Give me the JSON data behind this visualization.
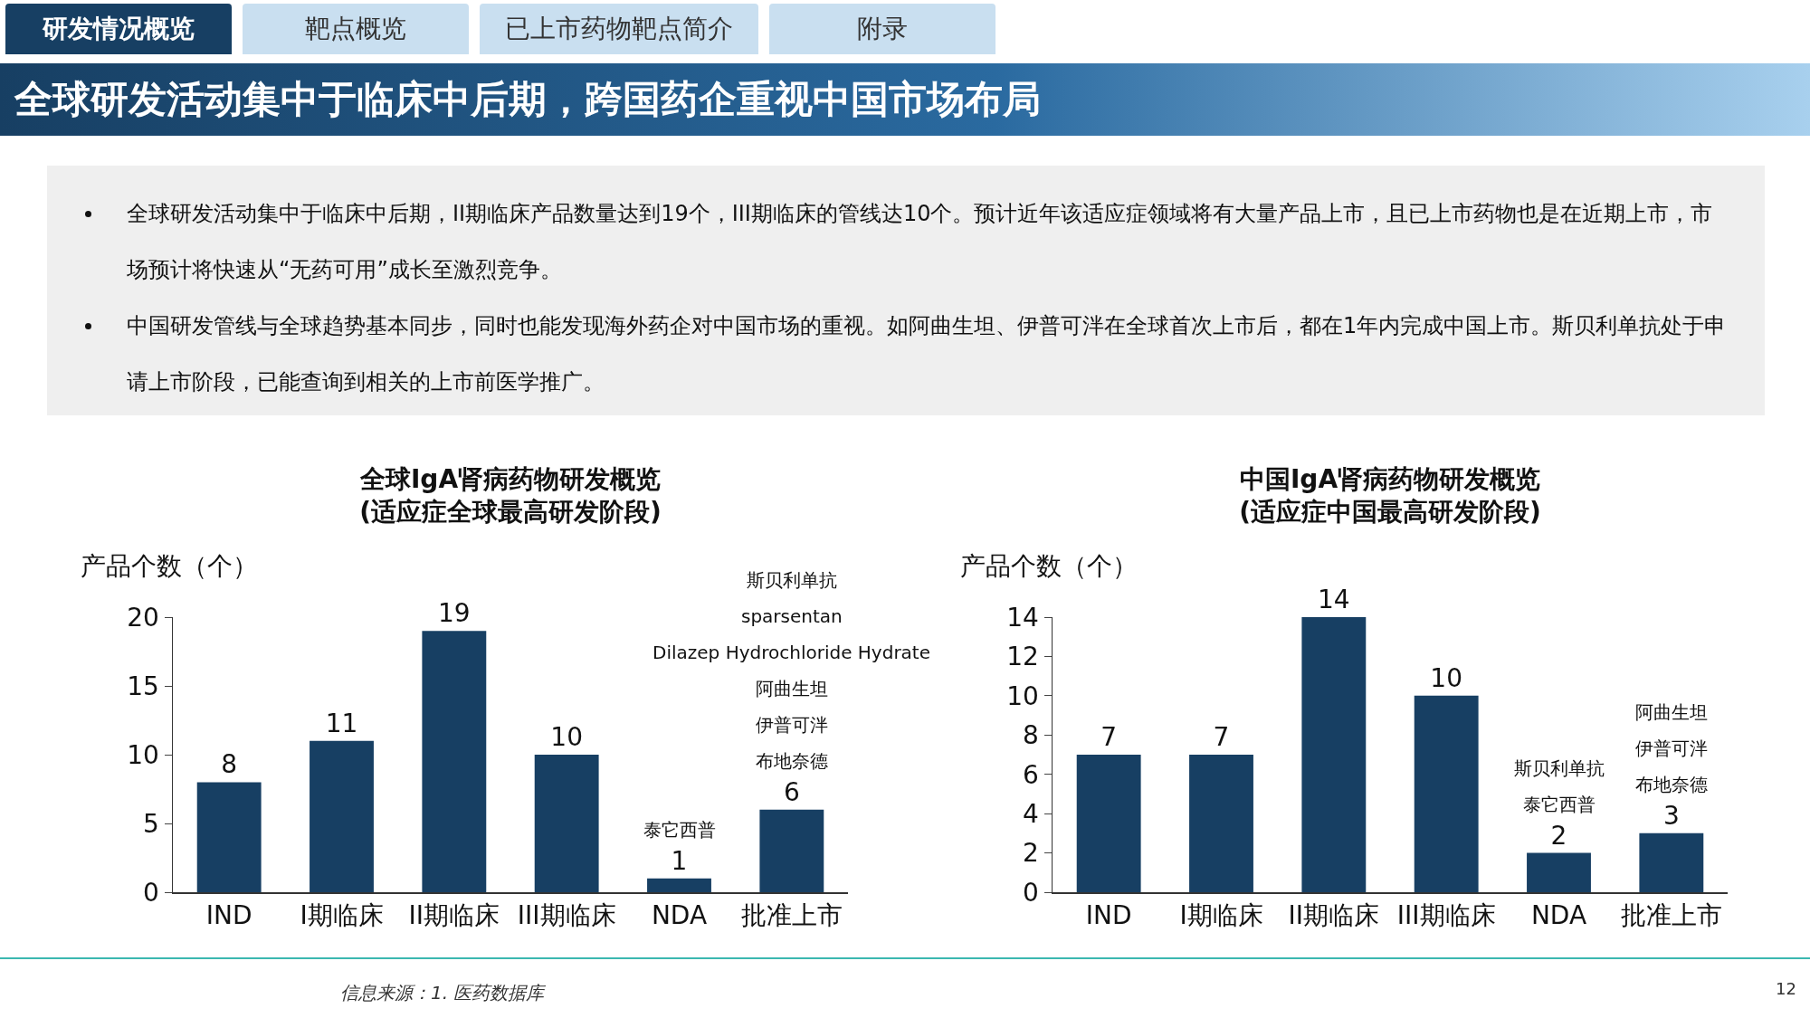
{
  "chart_data": [
    {
      "type": "other",
      "title": "全球研发活动集中于临床中后期，跨国药企重视中国市场布局",
      "annotations": [
        "研发情况概览",
        "靶点概览",
        "已上市药物靶点简介",
        "附录",
        "全球研发活动集中于临床中后期，II期临床产品数量达到19个，III期临床的管线达10个。预计近年该适应症领域将有大量产品上市，且已上市药物也是在近期上市，市场预计将快速从“无药可用”成长至激烈竞争。",
        "中国研发管线与全球趋势基本同步，同时也能发现海外药企对中国市场的重视。如阿曲生坦、伊普可泮在全球首次上市后，都在1年内完成中国上市。斯贝利单抗处于申请上市阶段，已能查询到相关的上市前医学推广。",
        "信息来源：1. 医药数据库",
        "12"
      ]
    },
    {
      "type": "bar",
      "title": "全球IgA肾病药物研发概览\n(适应症全球最高研发阶段)",
      "ylabel": "产品个数（个）",
      "categories": [
        "IND",
        "I期临床",
        "II期临床",
        "III期临床",
        "NDA",
        "批准上市"
      ],
      "values": [
        8,
        11,
        19,
        10,
        1,
        6
      ],
      "color": "#173f63",
      "ylim": [
        0,
        20
      ],
      "yticks": [
        0,
        5,
        10,
        15,
        20
      ],
      "grid": false,
      "legend": false,
      "data_labels": true,
      "annotations": [
        "泰它西普",
        "斯贝利单抗",
        "sparsentan",
        "Dilazep Hydrochloride Hydrate",
        "阿曲生坦",
        "伊普可泮",
        "布地奈德"
      ]
    },
    {
      "type": "bar",
      "title": "中国IgA肾病药物研发概览\n(适应症中国最高研发阶段)",
      "ylabel": "产品个数（个）",
      "categories": [
        "IND",
        "I期临床",
        "II期临床",
        "III期临床",
        "NDA",
        "批准上市"
      ],
      "values": [
        7,
        7,
        14,
        10,
        2,
        3
      ],
      "color": "#173f63",
      "ylim": [
        0,
        14
      ],
      "yticks": [
        0,
        2,
        4,
        6,
        8,
        10,
        12,
        14
      ],
      "grid": false,
      "legend": false,
      "data_labels": true,
      "annotations": [
        "斯贝利单抗",
        "泰它西普",
        "阿曲生坦",
        "伊普可泮",
        "布地奈德"
      ]
    }
  ]
}
